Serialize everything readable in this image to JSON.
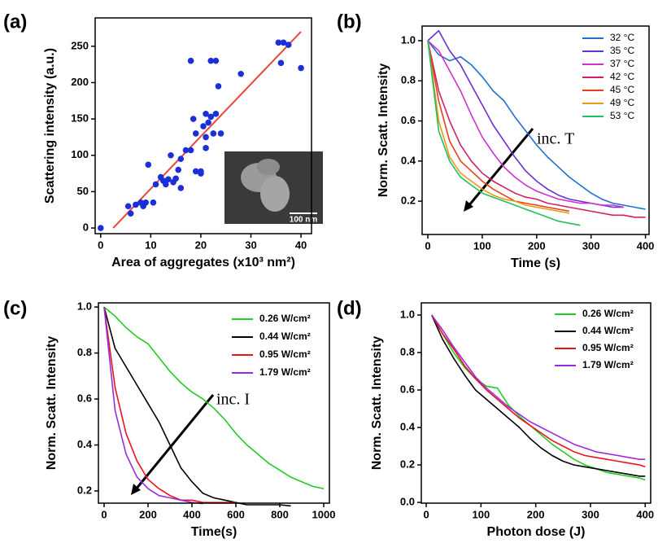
{
  "chart_data": [
    {
      "type": "scatter",
      "panel_label": "(a)",
      "xlabel": "Area of aggregates (x10³ nm²)",
      "ylabel": "Scattering intensity (a.u.)",
      "xlim": [
        -1.1,
        42.1
      ],
      "ylim": [
        -7.8,
        289
      ],
      "xticks": [
        0,
        10,
        20,
        30,
        40
      ],
      "yticks": [
        0,
        50,
        100,
        150,
        200,
        250
      ],
      "color": "#1a2fd6",
      "x": [
        0,
        5.5,
        6,
        7,
        8,
        8.5,
        9,
        9.5,
        10.5,
        11,
        12,
        12.5,
        13,
        13.5,
        14,
        14.5,
        15,
        15.5,
        16,
        16,
        17,
        18,
        18,
        18.5,
        19,
        19,
        20,
        20,
        20.5,
        21,
        21,
        21,
        21.5,
        22,
        22,
        22.5,
        23,
        23,
        23.5,
        24,
        28,
        35.5,
        36,
        36.5,
        37.5,
        40
      ],
      "values": [
        0,
        30,
        20,
        32,
        35,
        30,
        35,
        87,
        35,
        60,
        70,
        65,
        60,
        67,
        100,
        63,
        68,
        80,
        55,
        95,
        107,
        107,
        230,
        150,
        78,
        130,
        75,
        78,
        140,
        110,
        125,
        157,
        145,
        230,
        153,
        130,
        157,
        230,
        195,
        130,
        212,
        255,
        227,
        255,
        252,
        220
      ],
      "fit": {
        "x": [
          2.5,
          40
        ],
        "values": [
          0,
          270
        ],
        "color": "#e8463c"
      },
      "inset_label": "100 nm"
    },
    {
      "type": "line",
      "panel_label": "(b)",
      "xlabel": "Time (s)",
      "ylabel": "Norm. Scatt. Intensity",
      "xlim": [
        -10.5,
        406.6
      ],
      "ylim": [
        0.034,
        1.073
      ],
      "xticks": [
        0,
        100,
        200,
        300,
        400
      ],
      "yticks": [
        0.2,
        0.4,
        0.6,
        0.8,
        {
          "value": 1,
          "label": "1.0"
        }
      ],
      "legend": "upper right",
      "annotation": "inc. T",
      "x": [
        0,
        20,
        40,
        60,
        80,
        100,
        120,
        140,
        160,
        180,
        200,
        220,
        240,
        260,
        280,
        300,
        320,
        340,
        360,
        380,
        400
      ],
      "series": [
        {
          "name": "32 °C",
          "color": "#1f6fd0",
          "values": [
            1.0,
            0.93,
            0.9,
            0.92,
            0.88,
            0.82,
            0.75,
            0.7,
            0.62,
            0.55,
            0.48,
            0.42,
            0.37,
            0.32,
            0.28,
            0.24,
            0.21,
            0.19,
            0.18,
            0.17,
            0.16
          ]
        },
        {
          "name": "35 °C",
          "color": "#6a2fd0",
          "values": [
            1.0,
            1.05,
            0.95,
            0.88,
            0.78,
            0.68,
            0.58,
            0.5,
            0.42,
            0.35,
            0.3,
            0.26,
            0.23,
            0.21,
            0.2,
            0.19,
            0.18,
            0.17,
            0.17,
            null,
            null
          ]
        },
        {
          "name": "37 °C",
          "color": "#d02fd0",
          "values": [
            1.0,
            0.95,
            0.85,
            0.75,
            0.63,
            0.52,
            0.44,
            0.37,
            0.32,
            0.28,
            0.25,
            0.23,
            0.21,
            0.2,
            0.19,
            0.19,
            0.18,
            0.18,
            0.17,
            null,
            null
          ]
        },
        {
          "name": "42 °C",
          "color": "#d0206a",
          "values": [
            1.0,
            0.75,
            0.6,
            0.48,
            0.4,
            0.34,
            0.3,
            0.27,
            0.24,
            0.22,
            0.21,
            0.19,
            0.18,
            0.17,
            0.16,
            0.15,
            0.14,
            0.13,
            0.13,
            0.12,
            0.12
          ]
        },
        {
          "name": "45 °C",
          "color": "#e8401a",
          "values": [
            1.0,
            0.7,
            0.5,
            0.4,
            0.35,
            0.3,
            0.26,
            0.23,
            0.2,
            0.19,
            0.18,
            0.17,
            0.16,
            0.15,
            null,
            null,
            null,
            null,
            null,
            null,
            null
          ]
        },
        {
          "name": "49 °C",
          "color": "#e89a10",
          "values": [
            1.0,
            0.6,
            0.42,
            0.34,
            0.3,
            0.26,
            0.23,
            0.21,
            0.2,
            0.18,
            0.17,
            0.16,
            0.15,
            0.14,
            null,
            null,
            null,
            null,
            null,
            null,
            null
          ]
        },
        {
          "name": "53 °C",
          "color": "#20c060",
          "values": [
            1.0,
            0.55,
            0.4,
            0.32,
            0.28,
            0.24,
            0.22,
            0.2,
            0.18,
            0.16,
            0.14,
            0.12,
            0.1,
            0.09,
            0.08,
            null,
            null,
            null,
            null,
            null,
            null
          ]
        }
      ]
    },
    {
      "type": "line",
      "panel_label": "(c)",
      "xlabel": "Time(s)",
      "ylabel": "Norm. Scatt. Intensity",
      "xlim": [
        -26,
        1026
      ],
      "ylim": [
        0.147,
        1.018
      ],
      "xticks": [
        0,
        200,
        400,
        600,
        800,
        1000
      ],
      "yticks": [
        0.2,
        0.4,
        0.6,
        0.8,
        {
          "value": 1,
          "label": "1.0"
        }
      ],
      "legend": "upper right",
      "annotation": "inc. I",
      "x": [
        0,
        50,
        100,
        150,
        200,
        250,
        300,
        350,
        400,
        450,
        500,
        550,
        600,
        650,
        700,
        750,
        800,
        850,
        900,
        950,
        1000
      ],
      "series": [
        {
          "name": "0.26 W/cm²",
          "color": "#22cc22",
          "values": [
            1.0,
            0.96,
            0.91,
            0.87,
            0.84,
            0.78,
            0.72,
            0.67,
            0.63,
            0.6,
            0.56,
            0.51,
            0.45,
            0.4,
            0.36,
            0.32,
            0.29,
            0.26,
            0.24,
            0.22,
            0.21
          ]
        },
        {
          "name": "0.44 W/cm²",
          "color": "#000000",
          "values": [
            1.0,
            0.82,
            0.74,
            0.66,
            0.58,
            0.5,
            0.4,
            0.3,
            0.24,
            0.19,
            0.17,
            0.16,
            0.15,
            0.14,
            0.14,
            0.14,
            0.14,
            0.135,
            null,
            null,
            null
          ]
        },
        {
          "name": "0.95 W/cm²",
          "color": "#e8141e",
          "values": [
            1.0,
            0.65,
            0.45,
            0.33,
            0.25,
            0.21,
            0.18,
            0.16,
            0.16,
            0.15,
            0.15,
            0.15,
            0.15,
            null,
            null,
            null,
            null,
            null,
            null,
            null,
            null
          ]
        },
        {
          "name": "1.79 W/cm²",
          "color": "#9a2ae0",
          "values": [
            1.0,
            0.55,
            0.36,
            0.26,
            0.21,
            0.18,
            0.17,
            0.16,
            0.15,
            0.145,
            null,
            null,
            null,
            null,
            null,
            null,
            null,
            null,
            null,
            null,
            null
          ]
        }
      ]
    },
    {
      "type": "line",
      "panel_label": "(d)",
      "xlabel": "Photon dose (J)",
      "ylabel": "Norm. Scatt. Intensity",
      "xlim": [
        -9,
        410
      ],
      "ylim": [
        -0.004,
        1.065
      ],
      "xticks": [
        0,
        100,
        200,
        300,
        400
      ],
      "yticks": [
        {
          "value": 0,
          "label": "0.0"
        },
        0.2,
        0.4,
        0.6,
        0.8,
        {
          "value": 1,
          "label": "1.0"
        }
      ],
      "legend": "upper right",
      "x": [
        10,
        30,
        50,
        70,
        90,
        110,
        130,
        150,
        170,
        190,
        210,
        230,
        250,
        270,
        290,
        310,
        330,
        350,
        370,
        390,
        400
      ],
      "series": [
        {
          "name": "0.26 W/cm²",
          "color": "#22cc22",
          "values": [
            1.0,
            0.9,
            0.8,
            0.72,
            0.66,
            0.62,
            0.61,
            0.52,
            0.46,
            0.41,
            0.36,
            0.31,
            0.27,
            0.23,
            0.2,
            0.18,
            0.16,
            0.15,
            0.14,
            0.13,
            0.12
          ]
        },
        {
          "name": "0.44 W/cm²",
          "color": "#000000",
          "values": [
            1.0,
            0.87,
            0.77,
            0.68,
            0.6,
            0.55,
            0.5,
            0.45,
            0.4,
            0.34,
            0.29,
            0.25,
            0.22,
            0.2,
            0.19,
            0.18,
            0.17,
            0.16,
            0.15,
            0.14,
            0.14
          ]
        },
        {
          "name": "0.95 W/cm²",
          "color": "#e8141e",
          "values": [
            1.0,
            0.9,
            0.82,
            0.73,
            0.66,
            0.6,
            0.55,
            0.5,
            0.45,
            0.41,
            0.37,
            0.33,
            0.3,
            0.27,
            0.25,
            0.24,
            0.23,
            0.22,
            0.21,
            0.2,
            0.19
          ]
        },
        {
          "name": "1.79 W/cm²",
          "color": "#9a2ae0",
          "values": [
            1.0,
            0.92,
            0.83,
            0.75,
            0.67,
            0.61,
            0.56,
            0.51,
            0.47,
            0.43,
            0.4,
            0.37,
            0.34,
            0.31,
            0.29,
            0.27,
            0.26,
            0.25,
            0.24,
            0.23,
            0.23
          ]
        }
      ]
    }
  ]
}
